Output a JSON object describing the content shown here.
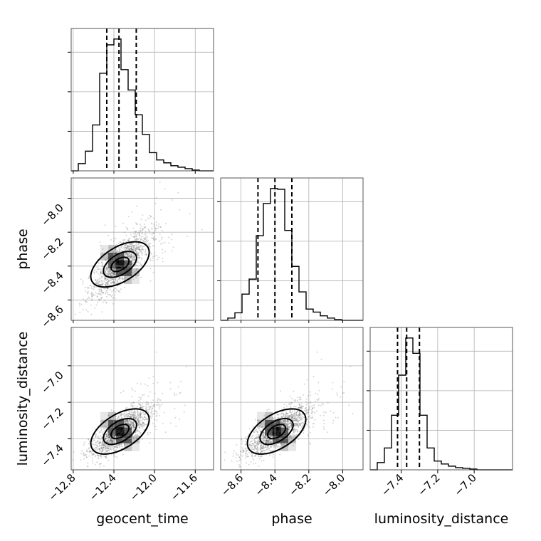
{
  "chart_data": {
    "type": "corner",
    "parameters": [
      "geocent_time",
      "phase",
      "luminosity_distance"
    ],
    "axis_labels": {
      "x": [
        "geocent_time",
        "phase",
        "luminosity_distance"
      ],
      "y": [
        "phase",
        "luminosity_distance"
      ]
    },
    "ranges": {
      "geocent_time": [
        -12.82,
        -11.42
      ],
      "phase": [
        -8.72,
        -7.88
      ],
      "luminosity_distance": [
        -7.57,
        -6.79
      ]
    },
    "ticks": {
      "geocent_time": [
        {
          "value": -12.8,
          "label": "−12.8"
        },
        {
          "value": -12.4,
          "label": "−12.4"
        },
        {
          "value": -12.0,
          "label": "−12.0"
        },
        {
          "value": -11.6,
          "label": "−11.6"
        }
      ],
      "phase": [
        {
          "value": -8.6,
          "label": "−8.6"
        },
        {
          "value": -8.4,
          "label": "−8.4"
        },
        {
          "value": -8.2,
          "label": "−8.2"
        },
        {
          "value": -8.0,
          "label": "−8.0"
        }
      ],
      "luminosity_distance": [
        {
          "value": -7.4,
          "label": "−7.4"
        },
        {
          "value": -7.2,
          "label": "−7.2"
        },
        {
          "value": -7.0,
          "label": "−7.0"
        }
      ]
    },
    "quantiles": {
      "geocent_time": [
        -12.47,
        -12.35,
        -12.18
      ],
      "phase": [
        -8.5,
        -8.4,
        -8.3
      ],
      "luminosity_distance": [
        -7.42,
        -7.37,
        -7.3
      ]
    },
    "histograms": {
      "geocent_time": {
        "bin_edges": [
          -12.82,
          -12.75,
          -12.68,
          -12.61,
          -12.54,
          -12.47,
          -12.4,
          -12.33,
          -12.26,
          -12.19,
          -12.12,
          -12.05,
          -11.98,
          -11.91,
          -11.84,
          -11.77,
          -11.7,
          -11.63,
          -11.56,
          -11.49,
          -11.42
        ],
        "counts": [
          0,
          10,
          27,
          63,
          134,
          173,
          181,
          139,
          111,
          77,
          50,
          25,
          15,
          11,
          7,
          5,
          3,
          1,
          0,
          0
        ]
      },
      "phase": {
        "bin_edges": [
          -8.72,
          -8.678,
          -8.636,
          -8.594,
          -8.552,
          -8.51,
          -8.468,
          -8.426,
          -8.384,
          -8.342,
          -8.3,
          -8.258,
          -8.216,
          -8.174,
          -8.132,
          -8.09,
          -8.048,
          -8.006,
          -7.964,
          -7.922,
          -7.88
        ],
        "counts": [
          0,
          3,
          10,
          35,
          55,
          113,
          156,
          176,
          175,
          120,
          72,
          38,
          15,
          11,
          6,
          3,
          1,
          0,
          0,
          0
        ]
      },
      "luminosity_distance": {
        "bin_edges": [
          -7.57,
          -7.531,
          -7.492,
          -7.453,
          -7.414,
          -7.375,
          -7.336,
          -7.297,
          -7.258,
          -7.219,
          -7.18,
          -7.141,
          -7.102,
          -7.063,
          -7.024,
          -6.985,
          -6.946,
          -6.907,
          -6.868,
          -6.829,
          -6.79
        ],
        "counts": [
          0,
          10,
          30,
          75,
          130,
          181,
          160,
          75,
          30,
          12,
          8,
          5,
          3,
          2,
          1,
          0,
          0,
          0,
          0,
          0
        ]
      }
    },
    "samples": {
      "correlation": "positive",
      "geocent_time_mean": -12.34,
      "geocent_time_sd": 0.15,
      "phase_mean": -8.39,
      "phase_sd": 0.1,
      "luminosity_distance_mean": -7.36,
      "luminosity_distance_sd": 0.07
    },
    "grid": true
  }
}
